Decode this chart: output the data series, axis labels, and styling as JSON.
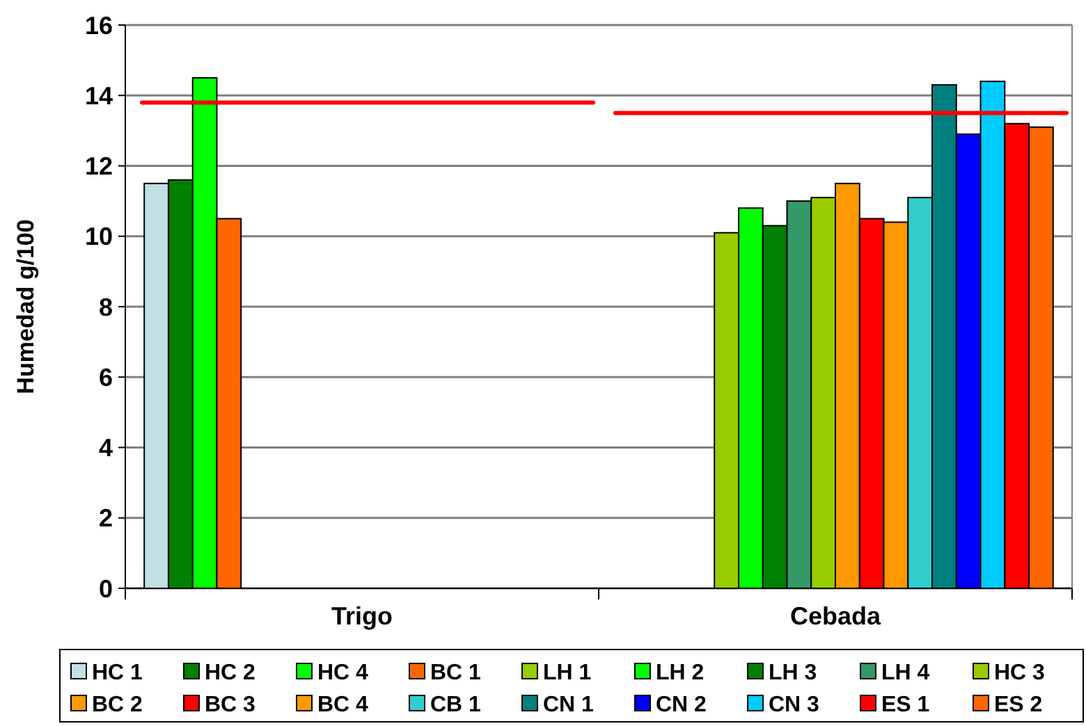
{
  "chart_data": {
    "type": "bar",
    "ylabel": "Humedad g/100",
    "categories": [
      "Trigo",
      "Cebada"
    ],
    "ylim": [
      0,
      16
    ],
    "yticks": [
      0,
      2,
      4,
      6,
      8,
      10,
      12,
      14,
      16
    ],
    "grid": "y",
    "legend": "bottom",
    "series": [
      {
        "name": "HC 1",
        "color": "#c0e0e4",
        "values": [
          11.5,
          null
        ]
      },
      {
        "name": "HC 2",
        "color": "#008000",
        "values": [
          11.6,
          null
        ]
      },
      {
        "name": "HC 4",
        "color": "#00ff00",
        "values": [
          14.5,
          null
        ]
      },
      {
        "name": "BC 1",
        "color": "#ff6600",
        "values": [
          10.5,
          null
        ]
      },
      {
        "name": "LH 1",
        "color": "#99cc00",
        "values": [
          null,
          10.1
        ]
      },
      {
        "name": "LH 2",
        "color": "#00ff00",
        "values": [
          null,
          10.8
        ]
      },
      {
        "name": "LH 3",
        "color": "#008000",
        "values": [
          null,
          10.3
        ]
      },
      {
        "name": "LH 4",
        "color": "#339966",
        "values": [
          null,
          11.0
        ]
      },
      {
        "name": "HC 3",
        "color": "#99cc00",
        "values": [
          null,
          11.1
        ]
      },
      {
        "name": "BC 2",
        "color": "#ff9900",
        "values": [
          null,
          11.5
        ]
      },
      {
        "name": "BC 3",
        "color": "#ff0000",
        "values": [
          null,
          10.5
        ]
      },
      {
        "name": "BC 4",
        "color": "#ff9900",
        "values": [
          null,
          10.4
        ]
      },
      {
        "name": "CB 1",
        "color": "#33cccc",
        "values": [
          null,
          11.1
        ]
      },
      {
        "name": "CN 1",
        "color": "#008080",
        "values": [
          null,
          14.3
        ]
      },
      {
        "name": "CN 2",
        "color": "#0000ff",
        "values": [
          null,
          12.9
        ]
      },
      {
        "name": "CN 3",
        "color": "#00ccff",
        "values": [
          null,
          14.4
        ]
      },
      {
        "name": "ES 1",
        "color": "#ff0000",
        "values": [
          null,
          13.2
        ]
      },
      {
        "name": "ES 2",
        "color": "#ff6600",
        "values": [
          null,
          13.1
        ]
      }
    ],
    "ref_lines": [
      {
        "axis": "y",
        "value": 13.8,
        "color": "#ff0000"
      },
      {
        "axis": "y",
        "value": 13.5,
        "color": "#ff0000"
      }
    ]
  }
}
